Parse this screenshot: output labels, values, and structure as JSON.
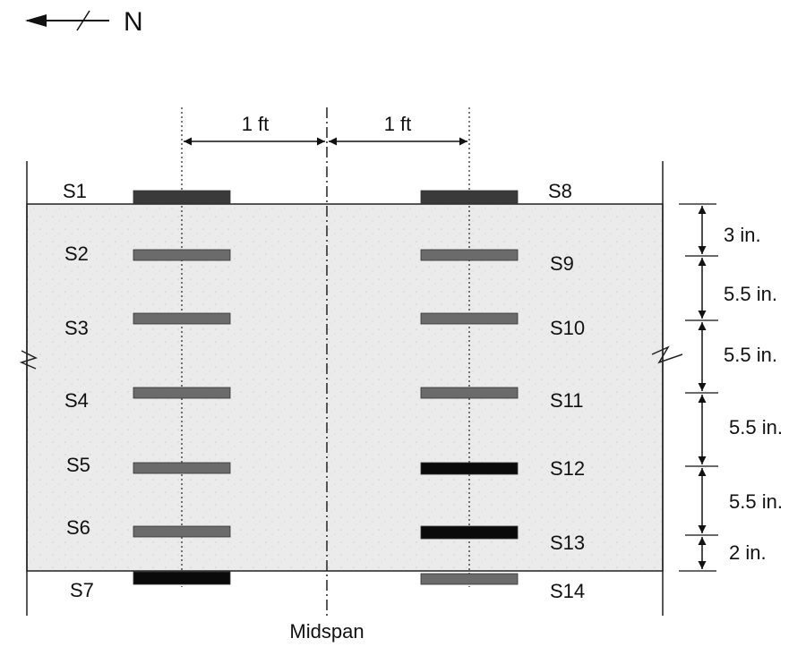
{
  "north_label": "N",
  "midspan_label": "Midspan",
  "spacing_labels": {
    "left": "1 ft",
    "right": "1 ft"
  },
  "depth_dimensions": [
    "3 in.",
    "5.5 in.",
    "5.5 in.",
    "5.5 in.",
    "5.5 in.",
    "2 in."
  ],
  "gauges": [
    {
      "id": "S1",
      "label": "S1",
      "fill": "dark"
    },
    {
      "id": "S2",
      "label": "S2",
      "fill": "gray"
    },
    {
      "id": "S3",
      "label": "S3",
      "fill": "gray"
    },
    {
      "id": "S4",
      "label": "S4",
      "fill": "gray"
    },
    {
      "id": "S5",
      "label": "S5",
      "fill": "gray"
    },
    {
      "id": "S6",
      "label": "S6",
      "fill": "gray"
    },
    {
      "id": "S7",
      "label": "S7",
      "fill": "black"
    },
    {
      "id": "S8",
      "label": "S8",
      "fill": "dark"
    },
    {
      "id": "S9",
      "label": "S9",
      "fill": "gray"
    },
    {
      "id": "S10",
      "label": "S10",
      "fill": "gray"
    },
    {
      "id": "S11",
      "label": "S11",
      "fill": "gray"
    },
    {
      "id": "S12",
      "label": "S12",
      "fill": "black"
    },
    {
      "id": "S13",
      "label": "S13",
      "fill": "black"
    },
    {
      "id": "S14",
      "label": "S14",
      "fill": "gray"
    }
  ],
  "colors": {
    "gray": "#6b6b6b",
    "dark": "#3a3a3a",
    "black": "#0a0a0a",
    "concrete": "#e9e9e9"
  }
}
